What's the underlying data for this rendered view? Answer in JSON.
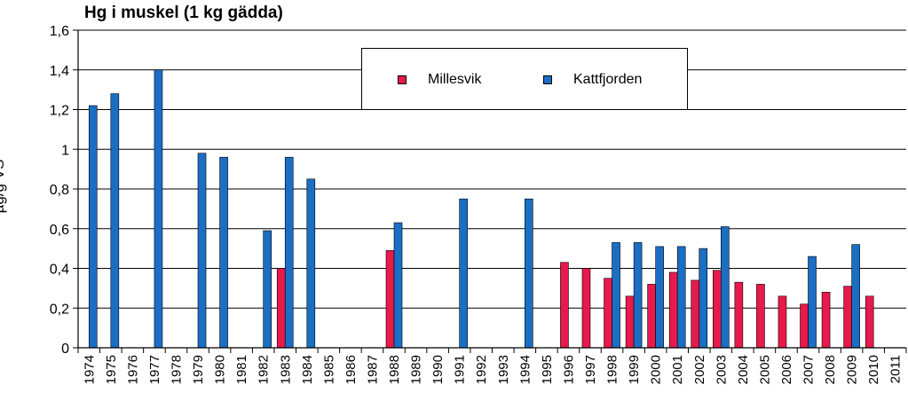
{
  "chart_data": {
    "type": "bar",
    "title": "Hg i muskel (1 kg gädda)",
    "ylabel": "µg/g VS",
    "xlabel": "",
    "ylim": [
      0,
      1.6
    ],
    "yticks": [
      "0",
      "0,2",
      "0,4",
      "0,6",
      "0,8",
      "1",
      "1,2",
      "1,4",
      "1,6"
    ],
    "grid": true,
    "legend_position": "top-center",
    "categories": [
      "1974",
      "1975",
      "1976",
      "1977",
      "1978",
      "1979",
      "1980",
      "1981",
      "1982",
      "1983",
      "1984",
      "1985",
      "1986",
      "1987",
      "1988",
      "1989",
      "1990",
      "1991",
      "1992",
      "1993",
      "1994",
      "1995",
      "1996",
      "1997",
      "1998",
      "1999",
      "2000",
      "2001",
      "2002",
      "2003",
      "2004",
      "2005",
      "2006",
      "2007",
      "2008",
      "2009",
      "2010",
      "2011"
    ],
    "series": [
      {
        "name": "Millesvik",
        "color": "#e8194b",
        "values": [
          null,
          null,
          null,
          null,
          null,
          null,
          null,
          null,
          null,
          0.4,
          null,
          null,
          null,
          null,
          0.49,
          null,
          null,
          null,
          null,
          null,
          null,
          null,
          0.43,
          0.4,
          0.35,
          0.26,
          0.32,
          0.38,
          0.34,
          0.39,
          0.33,
          0.32,
          0.26,
          0.22,
          0.28,
          0.31,
          0.26,
          null
        ]
      },
      {
        "name": "Kattfjorden",
        "color": "#1a6ec4",
        "values": [
          1.22,
          1.28,
          null,
          1.4,
          null,
          0.98,
          0.96,
          null,
          0.59,
          0.96,
          0.85,
          null,
          null,
          null,
          0.63,
          null,
          null,
          0.75,
          null,
          null,
          0.75,
          null,
          null,
          null,
          0.53,
          0.53,
          0.51,
          0.51,
          0.5,
          0.61,
          null,
          null,
          null,
          0.46,
          null,
          0.52,
          null,
          null
        ]
      }
    ]
  }
}
